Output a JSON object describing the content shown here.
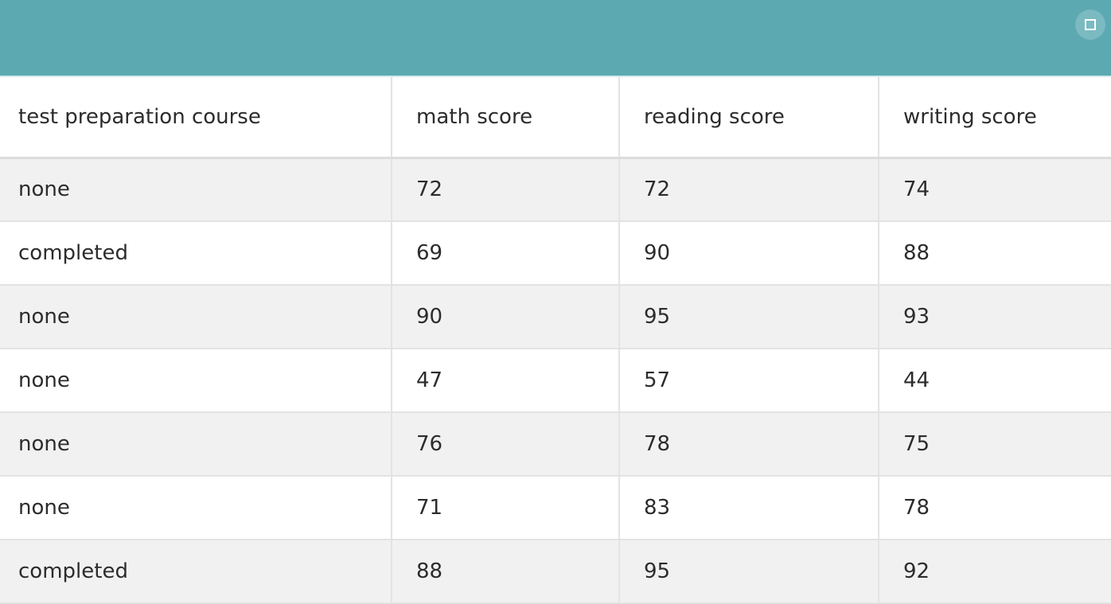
{
  "header": {
    "maximize_icon": "maximize-icon",
    "bg_color": "#5da9b2"
  },
  "table": {
    "columns": [
      "test preparation course",
      "math score",
      "reading score",
      "writing score"
    ],
    "rows": [
      [
        "none",
        "72",
        "72",
        "74"
      ],
      [
        "completed",
        "69",
        "90",
        "88"
      ],
      [
        "none",
        "90",
        "95",
        "93"
      ],
      [
        "none",
        "47",
        "57",
        "44"
      ],
      [
        "none",
        "76",
        "78",
        "75"
      ],
      [
        "none",
        "71",
        "83",
        "78"
      ],
      [
        "completed",
        "88",
        "95",
        "92"
      ]
    ]
  }
}
